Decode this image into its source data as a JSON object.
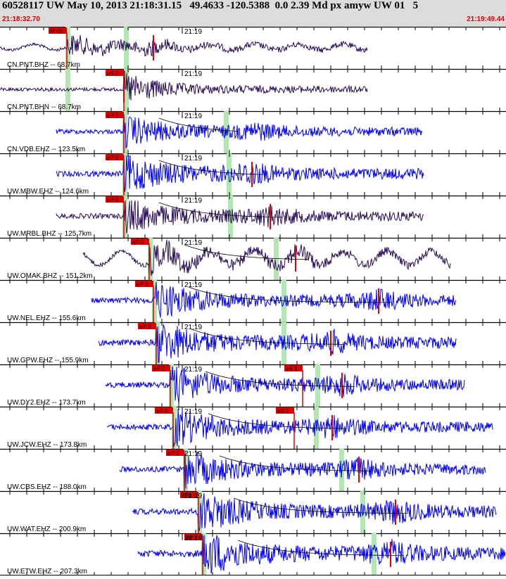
{
  "header": {
    "title": "60528117 UW May 10, 2013 21:18:31.15   49.4633 -120.5388  0.0 2.39 Md px amyw UW 01   5",
    "time_start": "21:18:32.70",
    "time_end": "21:19:49.44"
  },
  "colors": {
    "header_bg": "#dcdcdc",
    "trace_dark": "#2a0f5a",
    "trace_blue": "#0000ff",
    "pick_red": "#e00000",
    "window_green": "#b4e6b4",
    "arrival_curve": "#000000"
  },
  "chart_data": {
    "type": "seismogram",
    "time_axis": {
      "start": "21:18:32.70",
      "end": "21:19:49.44",
      "minute_label": "21:19"
    },
    "traces": [
      {
        "label": "CN.PNT.BHZ -- 68.7km",
        "color": "dark",
        "pick": "iP 60",
        "dist_km": 68.7
      },
      {
        "label": "CN.PNT.BHN -- 68.7km",
        "color": "dark",
        "pick": "eS 2",
        "dist_km": 68.7
      },
      {
        "label": "CN.VDB.EHZ -- 123.5km",
        "color": "blue",
        "pick": "eP 2",
        "dist_km": 123.5
      },
      {
        "label": "UW.MBW.EHZ -- 124.6km",
        "color": "blue",
        "pick": "eP 2",
        "dist_km": 124.6
      },
      {
        "label": "UW.MRBL.BHZ -- 125.7km",
        "color": "dark",
        "pick": "eP 2",
        "dist_km": 125.7
      },
      {
        "label": "UW.OMAK.BHZ -- 151.2km",
        "color": "dark",
        "pick": "eP 2",
        "dist_km": 151.2
      },
      {
        "label": "UW.NEL.EHZ -- 155.6km",
        "color": "blue",
        "pick": "eP 2",
        "dist_km": 155.6
      },
      {
        "label": "UW.GPW.EHZ -- 155.9km",
        "color": "blue",
        "pick": "eP 2",
        "dist_km": 155.9
      },
      {
        "label": "UW.DY2.EHZ -- 173.7km",
        "color": "blue",
        "pick": "eP 2",
        "s_pick": "eS 1",
        "dist_km": 173.7
      },
      {
        "label": "UW.JCW.EHZ -- 173.8km",
        "color": "blue",
        "pick": "eP 2",
        "s_pick": "eS 2",
        "dist_km": 173.8
      },
      {
        "label": "UW.CBS.EHZ -- 188.0km",
        "color": "blue",
        "pick": "eP 2",
        "dist_km": 188.0
      },
      {
        "label": "UW.WAT.EHZ -- 200.9km",
        "color": "blue",
        "pick": "iP 0",
        "dist_km": 200.9
      },
      {
        "label": "UW.ETW.EHZ -- 207.3km",
        "color": "blue",
        "pick": "eP 2",
        "dist_km": 207.3
      }
    ]
  }
}
